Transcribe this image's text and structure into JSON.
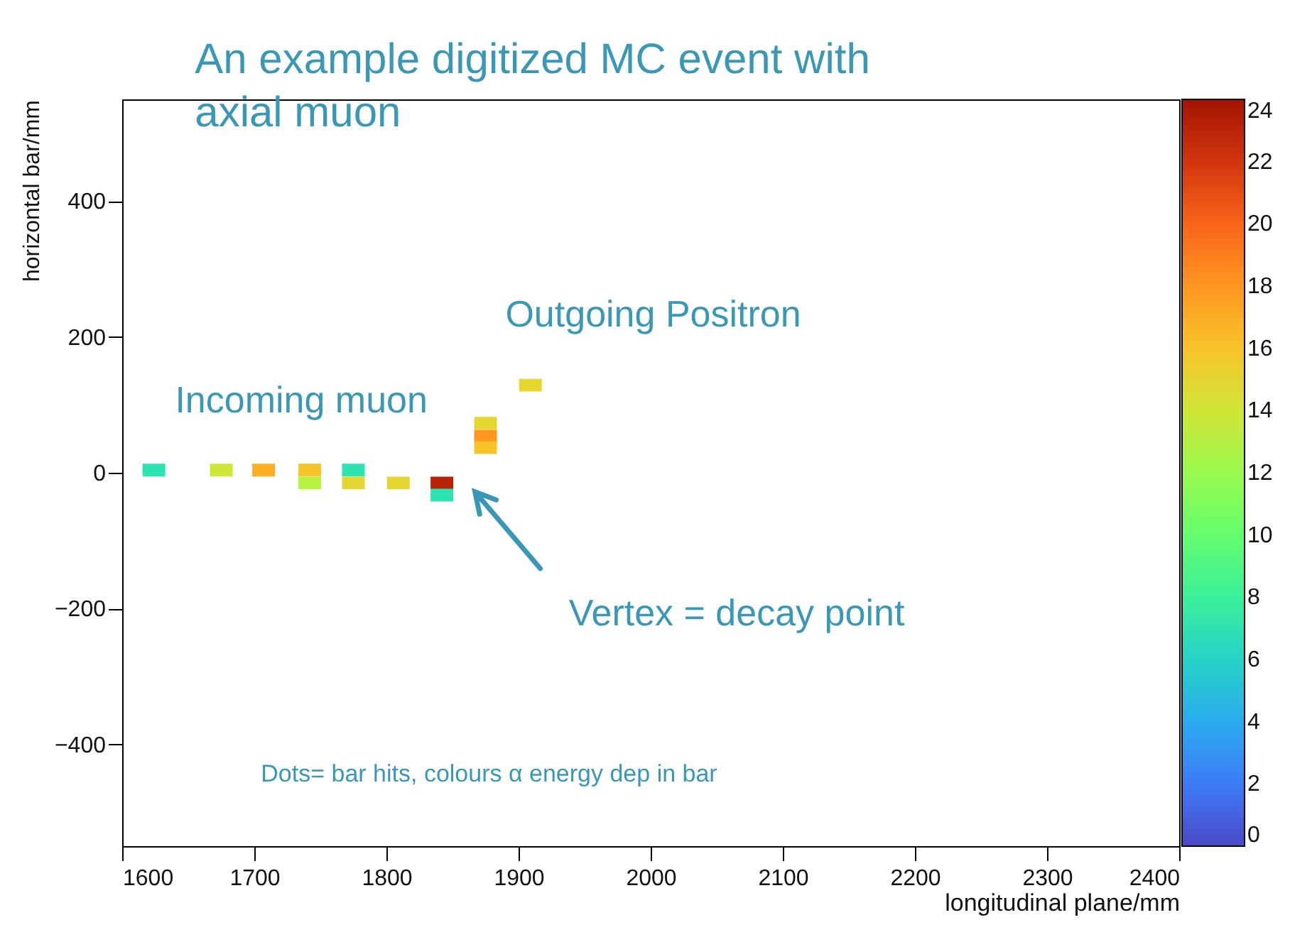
{
  "chart_data": {
    "type": "scatter",
    "title": "An example digitized MC event with axial muon",
    "xlabel": "longitudinal plane/mm",
    "ylabel": "horizontal bar/mm",
    "x": [
      1624,
      1675,
      1707,
      1742,
      1742,
      1775,
      1775,
      1809,
      1842,
      1842,
      1875,
      1875,
      1875,
      1909
    ],
    "values": [
      4,
      4,
      4,
      4,
      -15,
      4,
      -15,
      -15,
      -15,
      -33,
      73,
      54,
      37,
      129
    ],
    "cvalues": [
      7,
      14,
      17,
      16,
      13,
      7,
      15,
      15,
      23,
      7,
      15,
      18,
      16,
      15
    ],
    "marker": "square",
    "xlim": [
      1600,
      2400
    ],
    "xticks": [
      1600,
      1700,
      1800,
      1900,
      2000,
      2100,
      2200,
      2300,
      2400
    ],
    "ylim": [
      -550,
      550
    ],
    "yticks": [
      -400,
      -200,
      0,
      200,
      400
    ],
    "clim": [
      0,
      24
    ],
    "cticks": [
      0,
      2,
      4,
      6,
      8,
      10,
      12,
      14,
      16,
      18,
      20,
      22,
      24
    ],
    "annotations": [
      "Incoming muon",
      "Outgoing Positron",
      "Vertex = decay point",
      "Dots= bar hits, colours α energy dep in bar"
    ]
  }
}
